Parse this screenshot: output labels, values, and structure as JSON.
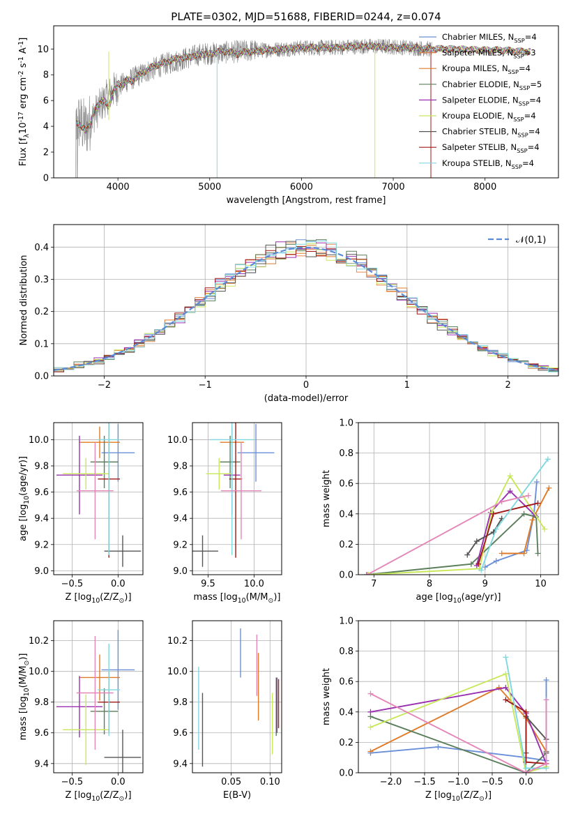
{
  "chart_data": [
    {
      "type": "line",
      "title": "PLATE=0302, MJD=51688, FIBERID=0244, z=0.074",
      "xlabel": "wavelength [Angstrom, rest frame]",
      "ylabel": "Flux [f$_\\lambda$10$^{-17}$ erg cm$^{-2}$ s$^{-1}$ A$^{-1}$]",
      "xlim": [
        3300,
        8800
      ],
      "ylim": [
        0,
        11.8
      ],
      "xticks": [
        "4000",
        "5000",
        "6000",
        "7000",
        "8000"
      ],
      "yticks": [
        "0",
        "2",
        "4",
        "6",
        "8",
        "10"
      ],
      "legend": {
        "placement": "upper right",
        "entries": [
          {
            "name": "Chabrier MILES, N$_{SSP}$=4",
            "color": "#6a8fd8"
          },
          {
            "name": "Salpeter MILES, N$_{SSP}$=3",
            "color": "#e3884f"
          },
          {
            "name": "Kroupa MILES, N$_{SSP}$=4",
            "color": "#e07a26"
          },
          {
            "name": "Chabrier ELODIE, N$_{SSP}$=5",
            "color": "#5a7d5a"
          },
          {
            "name": "Salpeter ELODIE, N$_{SSP}$=4",
            "color": "#9a2fb0"
          },
          {
            "name": "Kroupa ELODIE, N$_{SSP}$=4",
            "color": "#c8e85a"
          },
          {
            "name": "Chabrier STELIB, N$_{SSP}$=4",
            "color": "#555555"
          },
          {
            "name": "Salpeter STELIB, N$_{SSP}$=4",
            "color": "#a01818"
          },
          {
            "name": "Kroupa STELIB, N$_{SSP}$=4",
            "color": "#7fd8e0"
          }
        ]
      },
      "spectrum_envelope": {
        "x": [
          3550,
          3650,
          3750,
          3850,
          3950,
          4100,
          4300,
          4500,
          4700,
          4900,
          5100,
          5300,
          5500,
          5800,
          6000,
          6300,
          6600,
          6900,
          7200,
          7400
        ],
        "y": [
          4.5,
          3.8,
          5.0,
          6.0,
          6.8,
          7.5,
          8.2,
          8.8,
          9.2,
          9.6,
          9.7,
          9.8,
          9.9,
          10.0,
          10.1,
          10.1,
          10.2,
          10.2,
          10.1,
          10.0
        ]
      },
      "model": {
        "x": [
          3550,
          3600,
          3650,
          3700,
          3750,
          3800,
          3850,
          3900,
          3950,
          4000,
          4050,
          4100,
          4150,
          4200,
          4300,
          4400,
          4500,
          4600,
          4700,
          4800,
          4900,
          5000,
          5100,
          5200,
          5300,
          5400,
          5500,
          5600,
          5800,
          6000,
          6200,
          6400,
          6600,
          6800,
          7000,
          7200,
          7400,
          7600,
          7800,
          8000,
          8200,
          8400,
          8500
        ],
        "y": [
          4.4,
          3.9,
          3.7,
          4.2,
          5.3,
          5.8,
          6.0,
          5.5,
          6.7,
          7.3,
          7.2,
          7.6,
          7.5,
          7.8,
          8.3,
          8.7,
          8.9,
          9.2,
          9.3,
          9.4,
          9.6,
          9.6,
          9.8,
          9.8,
          9.6,
          9.8,
          9.8,
          9.9,
          10.0,
          10.1,
          10.1,
          10.1,
          10.2,
          10.2,
          10.1,
          10.1,
          10.0,
          10.0,
          9.95,
          9.9,
          9.9,
          9.8,
          9.8
        ]
      }
    },
    {
      "type": "line",
      "xlabel": "(data-model)/error",
      "ylabel": "Normed distribution",
      "xlim": [
        -2.5,
        2.5
      ],
      "ylim": [
        0,
        0.47
      ],
      "xticks": [
        "−2",
        "−1",
        "0",
        "1",
        "2"
      ],
      "yticks": [
        "0.0",
        "0.1",
        "0.2",
        "0.3",
        "0.4"
      ],
      "legend": {
        "placement": "upper right",
        "entries": [
          {
            "name": "$\\mathcal{N}(0,1)$",
            "color": "#5b8bd6"
          }
        ]
      },
      "gaussian": {
        "mu": 0,
        "sigma": 1
      },
      "histogram_bin_width": 0.1,
      "histogram_seeds": [
        0.012,
        0.018,
        0.009,
        0.021,
        0.015,
        0.011,
        0.019,
        0.014,
        0.016
      ]
    },
    {
      "type": "scatter",
      "xlabel": "Z [log$_{10}$(Z/Z$_\\odot$)]",
      "ylabel": "age  [log$_{10}$(age/yr)]",
      "xlim": [
        -0.7,
        0.27
      ],
      "ylim": [
        8.97,
        10.13
      ],
      "xticks": [
        "−0.5",
        "0.0"
      ],
      "yticks": [
        "9.0",
        "9.2",
        "9.4",
        "9.6",
        "9.8",
        "10.0"
      ],
      "points": [
        {
          "x": 0.0,
          "xerr": 0.18,
          "y": 9.9,
          "yerr": 0.22,
          "color": "#6a8fd8"
        },
        {
          "x": -0.2,
          "xerr": 0.22,
          "y": 9.98,
          "yerr": 0.12,
          "color": "#e07a26"
        },
        {
          "x": -0.15,
          "xerr": 0.15,
          "y": 9.83,
          "yerr": 0.2,
          "color": "#5a7d5a"
        },
        {
          "x": -0.42,
          "xerr": 0.25,
          "y": 9.73,
          "yerr": 0.3,
          "color": "#9a2fb0"
        },
        {
          "x": -0.35,
          "xerr": 0.25,
          "y": 9.74,
          "yerr": 0.12,
          "color": "#c8e85a"
        },
        {
          "x": 0.05,
          "xerr": 0.2,
          "y": 9.15,
          "yerr": 0.12,
          "color": "#555555"
        },
        {
          "x": -0.1,
          "xerr": 0.12,
          "y": 9.7,
          "yerr": 0.6,
          "color": "#a01818"
        },
        {
          "x": -0.1,
          "xerr": 0.12,
          "y": 10.0,
          "yerr": 0.88,
          "color": "#7fd8e0"
        },
        {
          "x": -0.25,
          "xerr": 0.2,
          "y": 9.61,
          "yerr": 0.37,
          "color": "#e386b8"
        }
      ]
    },
    {
      "type": "scatter",
      "xlabel": "mass [log$_{10}$(M/M$_\\odot$)]",
      "ylabel": "",
      "xlim": [
        9.33,
        10.3
      ],
      "ylim": [
        8.97,
        10.13
      ],
      "xticks": [
        "9.5",
        "10.0"
      ],
      "yticks": [
        "9.0",
        "9.2",
        "9.4",
        "9.6",
        "9.8",
        "10.0"
      ],
      "points": [
        {
          "x": 10.02,
          "xerr": 0.2,
          "y": 9.9,
          "yerr": 0.22,
          "color": "#6a8fd8"
        },
        {
          "x": 9.76,
          "xerr": 0.13,
          "y": 9.98,
          "yerr": 0.12,
          "color": "#e07a26"
        },
        {
          "x": 9.74,
          "xerr": 0.11,
          "y": 9.83,
          "yerr": 0.2,
          "color": "#5a7d5a"
        },
        {
          "x": 9.76,
          "xerr": 0.09,
          "y": 9.73,
          "yerr": 0.3,
          "color": "#9a2fb0"
        },
        {
          "x": 9.62,
          "xerr": 0.14,
          "y": 9.74,
          "yerr": 0.12,
          "color": "#c8e85a"
        },
        {
          "x": 9.44,
          "xerr": 0.17,
          "y": 9.15,
          "yerr": 0.12,
          "color": "#555555"
        },
        {
          "x": 9.8,
          "xerr": 0.07,
          "y": 9.7,
          "yerr": 0.6,
          "color": "#a01818"
        },
        {
          "x": 9.76,
          "xerr": 0.24,
          "y": 10.0,
          "yerr": 0.88,
          "color": "#7fd8e0"
        },
        {
          "x": 9.86,
          "xerr": 0.22,
          "y": 9.61,
          "yerr": 0.37,
          "color": "#e386b8"
        }
      ]
    },
    {
      "type": "line",
      "xlabel": "age  [log$_{10}$(age/yr)]",
      "ylabel": "mass weight",
      "xlim": [
        6.72,
        10.32
      ],
      "ylim": [
        0,
        1.0
      ],
      "xticks": [
        "7",
        "8",
        "9",
        "10"
      ],
      "yticks": [
        "0.0",
        "0.2",
        "0.4",
        "0.6",
        "0.8",
        "1.0"
      ],
      "series": [
        {
          "color": "#6a8fd8",
          "x": [
            9.0,
            9.2,
            9.75,
            9.88,
            9.93
          ],
          "y": [
            0.05,
            0.09,
            0.16,
            0.4,
            0.61
          ]
        },
        {
          "color": "#e07a26",
          "x": [
            9.3,
            9.7,
            9.85,
            10.15
          ],
          "y": [
            0.14,
            0.14,
            0.36,
            0.57
          ]
        },
        {
          "color": "#5a7d5a",
          "x": [
            6.87,
            8.75,
            9.7,
            9.92,
            9.95
          ],
          "y": [
            0.0,
            0.07,
            0.4,
            0.38,
            0.14
          ]
        },
        {
          "color": "#9a2fb0",
          "x": [
            8.85,
            9.1,
            9.45,
            9.9
          ],
          "y": [
            0.06,
            0.41,
            0.55,
            0.39
          ]
        },
        {
          "color": "#c8e85a",
          "x": [
            6.9,
            8.9,
            9.12,
            9.45,
            10.07
          ],
          "y": [
            0.0,
            0.04,
            0.41,
            0.65,
            0.3
          ]
        },
        {
          "color": "#555555",
          "x": [
            8.68,
            8.85,
            9.15,
            9.3
          ],
          "y": [
            0.13,
            0.22,
            0.28,
            0.37
          ]
        },
        {
          "color": "#a01818",
          "x": [
            8.88,
            9.15,
            9.95
          ],
          "y": [
            0.07,
            0.4,
            0.47
          ]
        },
        {
          "color": "#7fd8e0",
          "x": [
            8.93,
            9.2,
            10.13
          ],
          "y": [
            0.03,
            0.3,
            0.76
          ]
        },
        {
          "color": "#e386b8",
          "x": [
            6.88,
            9.3,
            9.78
          ],
          "y": [
            0.0,
            0.48,
            0.52
          ]
        }
      ]
    },
    {
      "type": "scatter",
      "xlabel": "Z [log$_{10}$(Z/Z$_\\odot$)]",
      "ylabel": "mass [log$_{10}$(M/M$_\\odot$)]",
      "xlim": [
        -0.7,
        0.27
      ],
      "ylim": [
        9.34,
        10.33
      ],
      "xticks": [
        "−0.5",
        "0.0"
      ],
      "yticks": [
        "9.4",
        "9.6",
        "9.8",
        "10.0",
        "10.2"
      ],
      "points": [
        {
          "x": 0.0,
          "xerr": 0.18,
          "y": 10.01,
          "yerr": 0.26,
          "color": "#6a8fd8"
        },
        {
          "x": -0.2,
          "xerr": 0.22,
          "y": 9.96,
          "yerr": 0.15,
          "color": "#e07a26"
        },
        {
          "x": -0.15,
          "xerr": 0.15,
          "y": 9.74,
          "yerr": 0.15,
          "color": "#5a7d5a"
        },
        {
          "x": -0.42,
          "xerr": 0.25,
          "y": 9.77,
          "yerr": 0.2,
          "color": "#9a2fb0"
        },
        {
          "x": -0.35,
          "xerr": 0.25,
          "y": 9.62,
          "yerr": 0.23,
          "color": "#c8e85a"
        },
        {
          "x": 0.05,
          "xerr": 0.2,
          "y": 9.44,
          "yerr": 0.18,
          "color": "#555555"
        },
        {
          "x": -0.1,
          "xerr": 0.12,
          "y": 9.8,
          "yerr": 0.2,
          "color": "#a01818"
        },
        {
          "x": -0.1,
          "xerr": 0.12,
          "y": 9.88,
          "yerr": 0.3,
          "color": "#7fd8e0"
        },
        {
          "x": -0.25,
          "xerr": 0.2,
          "y": 9.86,
          "yerr": 0.37,
          "color": "#e386b8"
        }
      ]
    },
    {
      "type": "scatter",
      "xlabel": "E(B-V)",
      "ylabel": "",
      "xlim": [
        0.0,
        0.115
      ],
      "ylim": [
        9.34,
        10.33
      ],
      "xticks": [
        "0.05",
        "0.10"
      ],
      "yticks": [
        "9.4",
        "9.6",
        "9.8",
        "10.0",
        "10.2"
      ],
      "points": [
        {
          "x": 0.062,
          "y": 10.12,
          "yerr": 0.16,
          "color": "#6a8fd8"
        },
        {
          "x": 0.085,
          "y": 9.9,
          "yerr": 0.22,
          "color": "#e07a26"
        },
        {
          "x": 0.108,
          "y": 9.77,
          "yerr": 0.19,
          "color": "#5a7d5a"
        },
        {
          "x": 0.109,
          "y": 9.78,
          "yerr": 0.18,
          "color": "#9a2fb0"
        },
        {
          "x": 0.103,
          "y": 9.66,
          "yerr": 0.2,
          "color": "#c8e85a"
        },
        {
          "x": 0.013,
          "y": 9.62,
          "yerr": 0.24,
          "color": "#555555"
        },
        {
          "x": 0.111,
          "y": 9.79,
          "yerr": 0.16,
          "color": "#a01818"
        },
        {
          "x": 0.008,
          "y": 9.76,
          "yerr": 0.27,
          "color": "#7fd8e0"
        },
        {
          "x": 0.083,
          "y": 10.04,
          "yerr": 0.2,
          "color": "#e386b8"
        }
      ]
    },
    {
      "type": "line",
      "xlabel": "Z [log$_{10}$(Z/Z$_\\odot$)]",
      "ylabel": "mass weight",
      "xlim": [
        -2.48,
        0.48
      ],
      "ylim": [
        0,
        1.0
      ],
      "xticks": [
        "−2.0",
        "−1.5",
        "−1.0",
        "−0.5",
        "0.0"
      ],
      "yticks": [
        "0.0",
        "0.2",
        "0.4",
        "0.6",
        "0.8",
        "1.0"
      ],
      "series": [
        {
          "color": "#6a8fd8",
          "x": [
            -2.3,
            -1.3,
            0.0,
            0.3,
            0.3
          ],
          "y": [
            0.13,
            0.17,
            0.1,
            0.08,
            0.61
          ]
        },
        {
          "color": "#e07a26",
          "x": [
            -2.3,
            -0.4,
            0.0,
            0.3
          ],
          "y": [
            0.14,
            0.56,
            0.36,
            0.14
          ]
        },
        {
          "color": "#5a7d5a",
          "x": [
            -2.3,
            0.0,
            0.3,
            0.3
          ],
          "y": [
            0.37,
            0.0,
            0.13,
            0.14
          ]
        },
        {
          "color": "#9a2fb0",
          "x": [
            -2.3,
            -0.3,
            0.0,
            0.3
          ],
          "y": [
            0.4,
            0.56,
            0.39,
            0.06
          ]
        },
        {
          "color": "#c8e85a",
          "x": [
            -2.3,
            -0.3,
            0.0,
            0.3
          ],
          "y": [
            0.3,
            0.65,
            0.0,
            0.04
          ]
        },
        {
          "color": "#555555",
          "x": [
            0.0,
            0.0,
            0.3,
            0.3
          ],
          "y": [
            0.13,
            0.37,
            0.22,
            0.13
          ]
        },
        {
          "color": "#a01818",
          "x": [
            -0.3,
            0.0,
            0.0,
            0.3
          ],
          "y": [
            0.48,
            0.4,
            0.07,
            0.06
          ]
        },
        {
          "color": "#7fd8e0",
          "x": [
            -0.3,
            0.0,
            0.3
          ],
          "y": [
            0.76,
            0.03,
            0.03
          ]
        },
        {
          "color": "#e386b8",
          "x": [
            -2.3,
            0.0,
            0.3,
            0.3
          ],
          "y": [
            0.52,
            0.0,
            0.06,
            0.48
          ]
        }
      ]
    }
  ]
}
